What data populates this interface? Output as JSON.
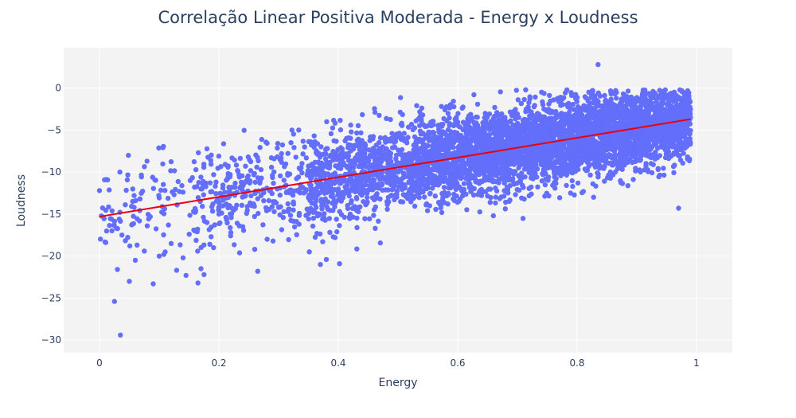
{
  "chart_data": {
    "type": "scatter",
    "title": "Correlação Linear Positiva Moderada - Energy x Loudness",
    "xlabel": "Energy",
    "ylabel": "Loudness",
    "xlim": [
      -0.06,
      1.06
    ],
    "ylim": [
      -31.5,
      4.8
    ],
    "x_ticks": [
      0,
      0.2,
      0.4,
      0.6,
      0.8,
      1
    ],
    "x_tick_labels": [
      "0",
      "0.2",
      "0.4",
      "0.6",
      "0.8",
      "1"
    ],
    "y_ticks": [
      0,
      -5,
      -10,
      -15,
      -20,
      -25,
      -30
    ],
    "y_tick_labels": [
      "0",
      "−5",
      "−10",
      "−15",
      "−20",
      "−25",
      "−30"
    ],
    "grid": true,
    "legend": "none",
    "colors": {
      "points": "#636efa",
      "trend": "#e8000b",
      "plot_bg": "#f3f3f3",
      "grid": "#ffffff",
      "text": "#2a3f5f"
    },
    "series": [
      {
        "type": "scatter",
        "description_points": [
          [
            0.0,
            -12.2
          ],
          [
            0.02,
            -15.6
          ],
          [
            0.025,
            -25.4
          ],
          [
            0.03,
            -21.6
          ],
          [
            0.033,
            -15.6
          ],
          [
            0.035,
            -29.4
          ],
          [
            0.05,
            -23.0
          ],
          [
            0.055,
            -16.2
          ],
          [
            0.06,
            -20.5
          ],
          [
            0.075,
            -19.4
          ],
          [
            0.08,
            -16.4
          ],
          [
            0.085,
            -15.3
          ],
          [
            0.09,
            -23.3
          ],
          [
            0.1,
            -20.0
          ],
          [
            0.105,
            -14.1
          ],
          [
            0.11,
            -19.5
          ],
          [
            0.12,
            -18.5
          ],
          [
            0.13,
            -13.9
          ],
          [
            0.14,
            -20.2
          ],
          [
            0.145,
            -22.3
          ],
          [
            0.16,
            -17.0
          ],
          [
            0.165,
            -23.2
          ],
          [
            0.17,
            -21.5
          ],
          [
            0.175,
            -22.2
          ],
          [
            0.18,
            -16.0
          ],
          [
            0.19,
            -13.8
          ],
          [
            0.2,
            -15.0
          ],
          [
            0.21,
            -12.4
          ],
          [
            0.22,
            -17.2
          ],
          [
            0.24,
            -16.5
          ],
          [
            0.26,
            -19.2
          ],
          [
            0.265,
            -21.8
          ],
          [
            0.28,
            -14.6
          ],
          [
            0.3,
            -14.2
          ],
          [
            0.32,
            -12.3
          ],
          [
            0.35,
            -13.0
          ],
          [
            0.37,
            -21.0
          ],
          [
            0.38,
            -20.4
          ],
          [
            0.4,
            -12.0
          ],
          [
            0.42,
            -15.0
          ],
          [
            0.45,
            -11.0
          ],
          [
            0.5,
            -10.0
          ],
          [
            0.55,
            -9.5
          ],
          [
            0.6,
            -8.5
          ],
          [
            0.65,
            -8.0
          ],
          [
            0.7,
            -7.5
          ],
          [
            0.75,
            -6.8
          ],
          [
            0.8,
            -6.2
          ],
          [
            0.835,
            2.8
          ],
          [
            0.85,
            -5.8
          ],
          [
            0.9,
            -5.0
          ],
          [
            0.95,
            -4.5
          ],
          [
            0.97,
            -14.3
          ],
          [
            0.99,
            -3.5
          ]
        ]
      },
      {
        "type": "line",
        "x": [
          0,
          0.99
        ],
        "y": [
          -15.3,
          -3.7
        ]
      }
    ]
  }
}
